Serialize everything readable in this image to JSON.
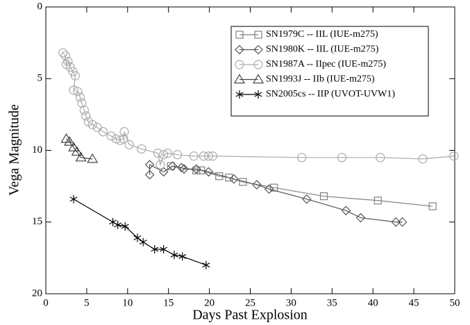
{
  "chart_data": {
    "type": "line",
    "x_label": "Days Past Explosion",
    "y_label": "Vega Magnitude",
    "xlim": [
      0,
      50
    ],
    "xticks": [
      0,
      5,
      10,
      15,
      20,
      25,
      30,
      35,
      40,
      45,
      50
    ],
    "ylim": [
      0,
      20
    ],
    "yticks": [
      0,
      5,
      10,
      15,
      20
    ],
    "y_inverted": true,
    "legend_position": "upper right",
    "series": [
      {
        "name": "SN1979C -- IIL (IUE-m275)",
        "color": "#808080",
        "marker": "square",
        "x": [
          15.3,
          18.4,
          19.0,
          21.2,
          22.4,
          24.1,
          27.9,
          34.0,
          40.6,
          47.3
        ],
        "values": [
          11.1,
          11.4,
          11.4,
          11.8,
          11.9,
          12.2,
          12.6,
          13.2,
          13.5,
          13.9
        ]
      },
      {
        "name": "SN1980K -- IIL (IUE-m275)",
        "color": "#555555",
        "marker": "diamond",
        "x": [
          12.7,
          12.7,
          14.4,
          15.5,
          16.6,
          16.9,
          18.4,
          19.9,
          23.0,
          25.8,
          27.3,
          31.9,
          36.7,
          38.5,
          42.8,
          43.6
        ],
        "values": [
          11.7,
          11.0,
          11.5,
          11.1,
          11.2,
          11.3,
          11.3,
          11.5,
          12.0,
          12.4,
          12.7,
          13.4,
          14.2,
          14.7,
          15.0,
          15.0
        ]
      },
      {
        "name": "SN1987A -- IIpec (IUE-m275)",
        "color": "#aaaaaa",
        "marker": "circle",
        "x": [
          2.1,
          2.4,
          2.5,
          2.7,
          3.0,
          3.3,
          3.6,
          3.4,
          3.9,
          4.2,
          4.4,
          4.7,
          4.9,
          5.2,
          5.7,
          6.3,
          7.0,
          8.0,
          8.6,
          9.1,
          9.5,
          9.6,
          10.2,
          11.7,
          13.7,
          14.0,
          14.4,
          14.9,
          16.1,
          18.1,
          19.3,
          19.9,
          20.4,
          31.3,
          36.2,
          40.9,
          46.1,
          49.9
        ],
        "values": [
          3.2,
          3.4,
          4.0,
          3.8,
          4.2,
          4.5,
          4.8,
          5.8,
          5.9,
          6.3,
          6.7,
          7.2,
          7.6,
          8.0,
          8.2,
          8.4,
          8.7,
          9.0,
          9.2,
          9.3,
          9.2,
          8.7,
          9.6,
          9.9,
          10.2,
          11.0,
          10.3,
          10.2,
          10.3,
          10.4,
          10.4,
          10.4,
          10.4,
          10.5,
          10.5,
          10.5,
          10.6,
          10.4
        ]
      },
      {
        "name": "SN1993J -- IIb (IUE-m275)",
        "color": "#444444",
        "marker": "triangle",
        "x": [
          2.5,
          2.9,
          3.4,
          3.8,
          4.3,
          5.7
        ],
        "values": [
          9.2,
          9.4,
          9.8,
          10.1,
          10.5,
          10.6
        ]
      },
      {
        "name": "SN2005cs -- IIP (UVOT-UVW1)",
        "color": "#000000",
        "marker": "asterisk",
        "x": [
          3.4,
          8.2,
          8.8,
          9.7,
          11.2,
          11.9,
          13.3,
          14.4,
          15.7,
          16.7,
          19.6
        ],
        "values": [
          13.4,
          15.0,
          15.2,
          15.3,
          16.1,
          16.4,
          16.9,
          16.9,
          17.3,
          17.4,
          18.0
        ]
      }
    ]
  }
}
